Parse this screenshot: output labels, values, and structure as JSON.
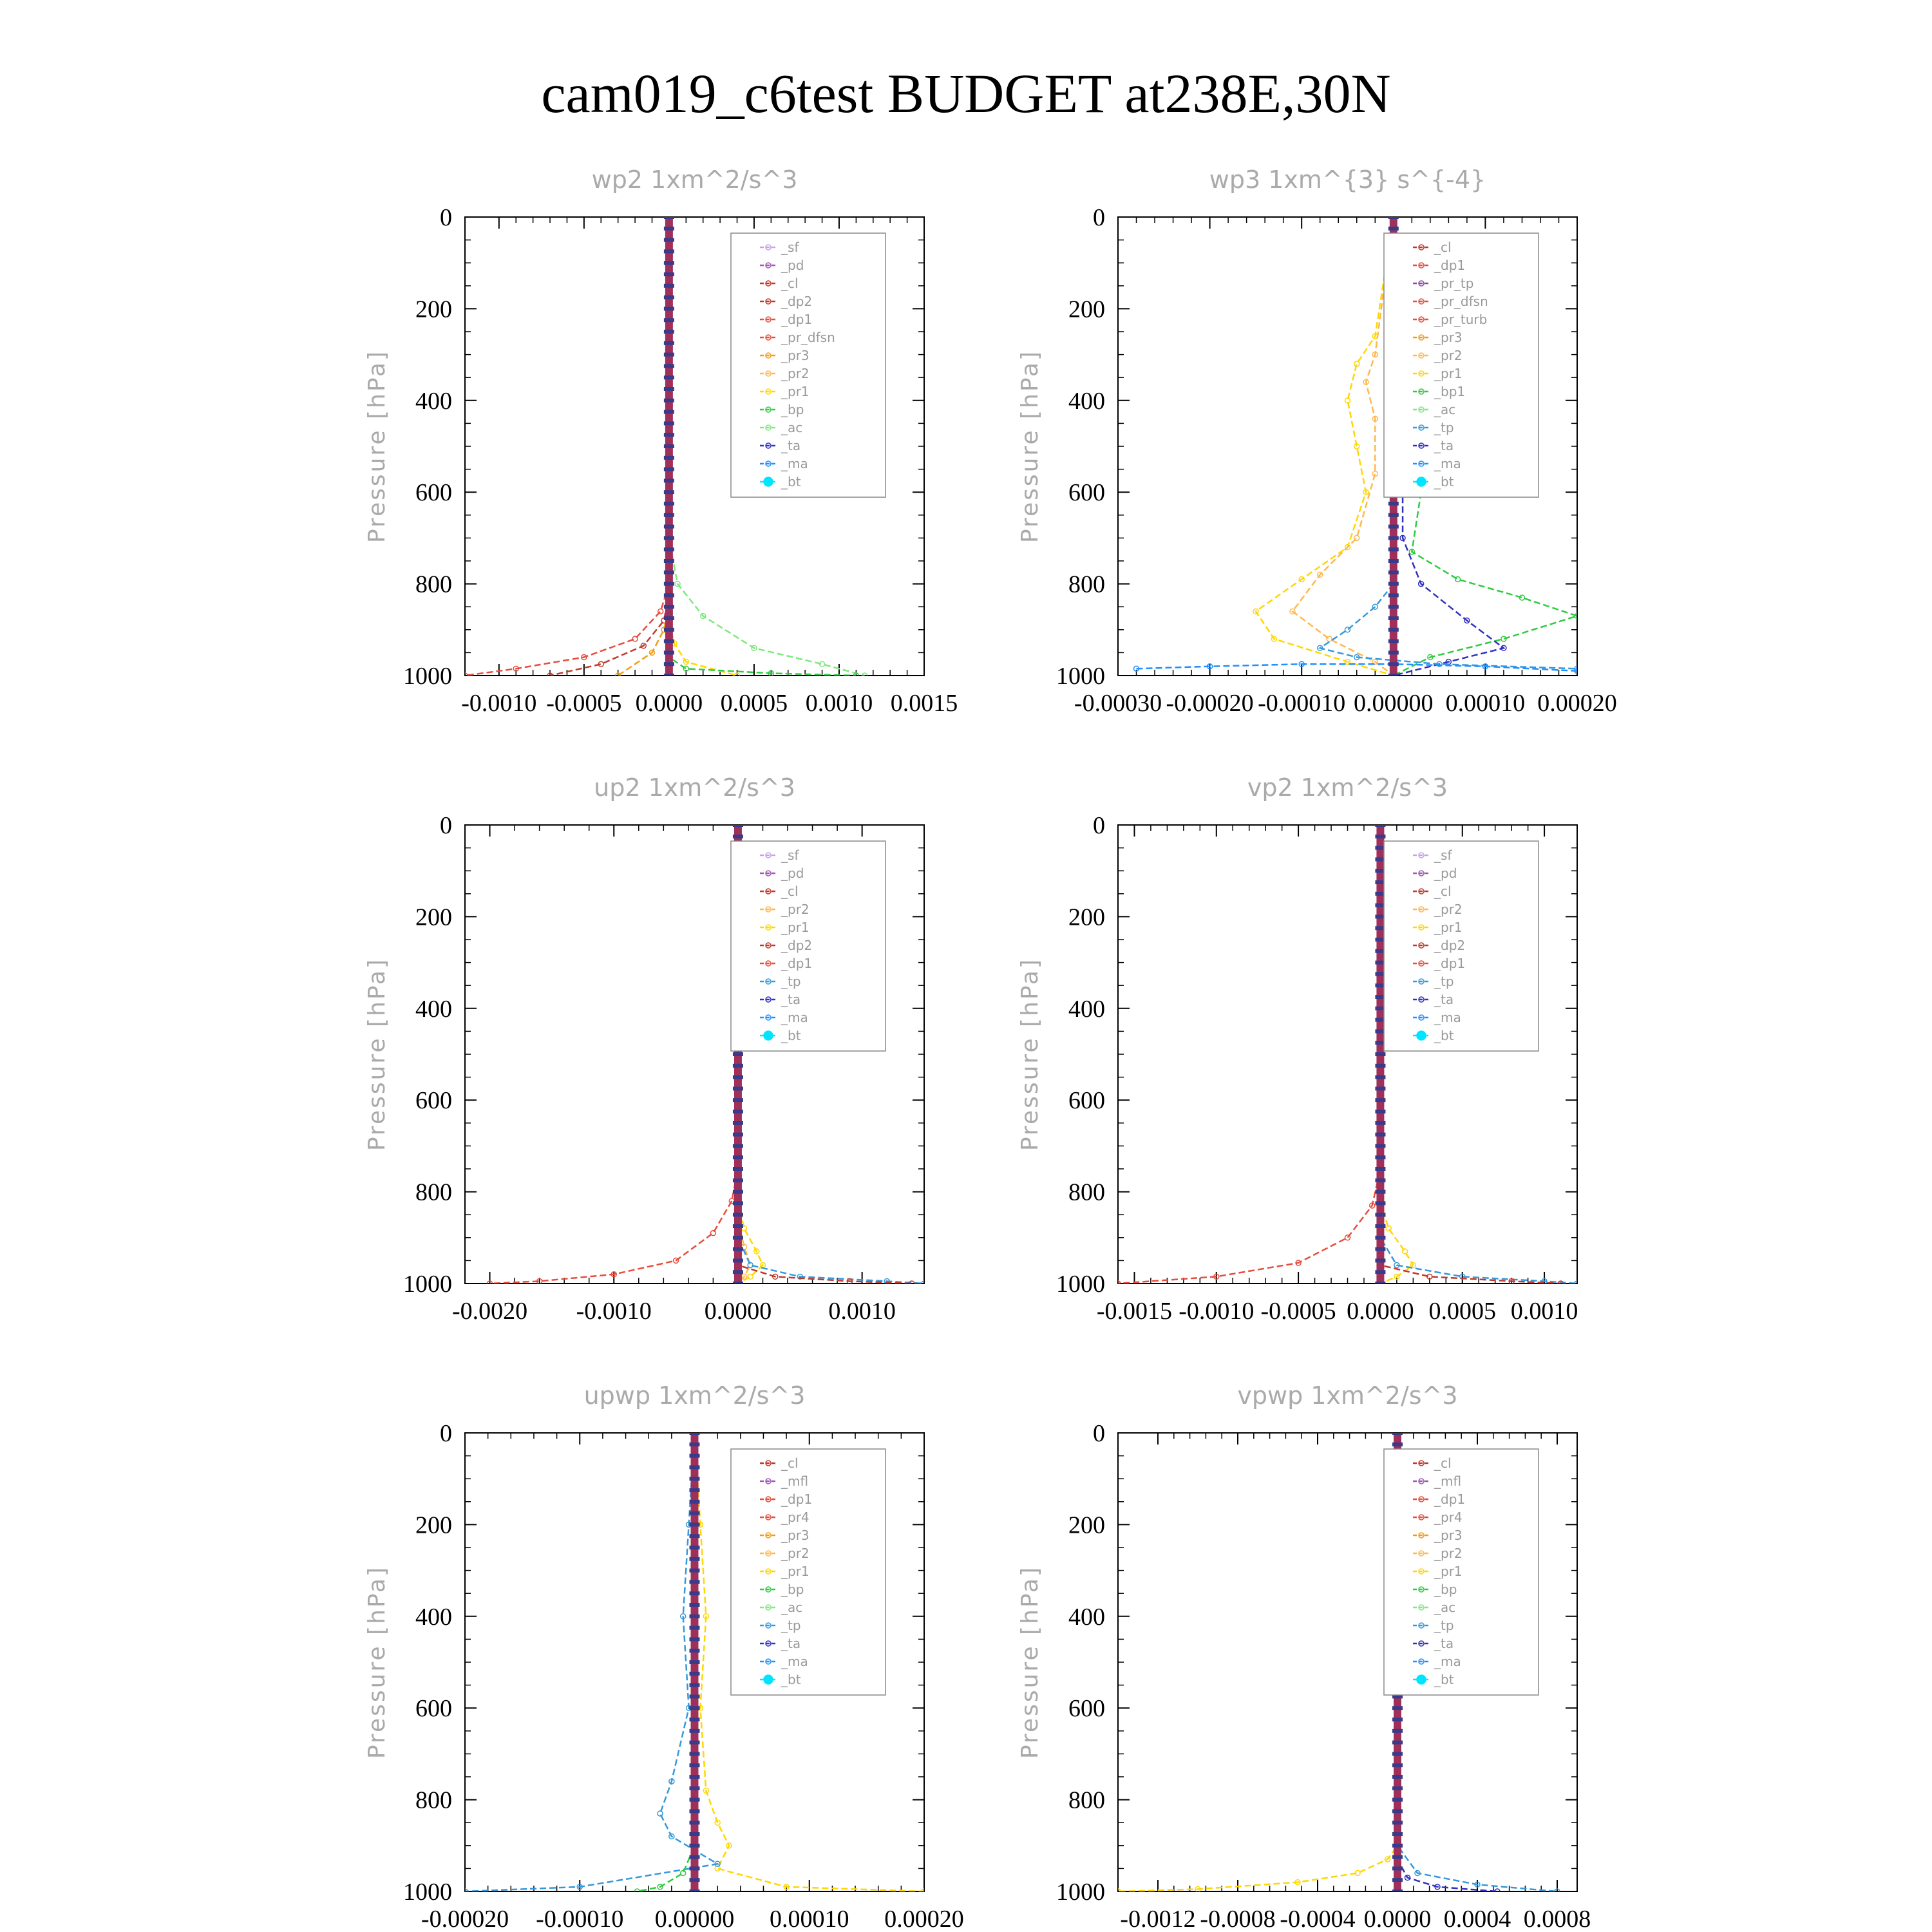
{
  "page_title": "cam019_c6test  BUDGET at238E,30N",
  "colors": {
    "_sf": "#c8a2e8",
    "_pd": "#9b59b6",
    "_cl": "#c0392b",
    "_dp2": "#c0392b",
    "_dp1": "#e74c3c",
    "_pr_dfsn": "#e74c3c",
    "_pr3": "#f39c12",
    "_pr2": "#ffb84d",
    "_pr1": "#ffd700",
    "_bp": "#2ecc40",
    "_ac": "#7fe87f",
    "_tp": "#3498db",
    "_ta": "#3030c0",
    "_ma": "#1e90ff",
    "_bt": "#00e5ff",
    "_pr_tp": "#8e44ad",
    "_pr_turb": "#e74c3c",
    "_bp1": "#2ecc40",
    "_mfl": "#9b59b6",
    "_pr4": "#e74c3c"
  },
  "chart_data": [
    {
      "type": "line",
      "title": "wp2   1xm^2/s^3",
      "ylabel": "Pressure [hPa]",
      "ylim": [
        1000,
        0
      ],
      "xlim": [
        -0.0012,
        0.0015
      ],
      "xticks": [
        "-0.0010",
        "-0.0005",
        "0.0000",
        "0.0005",
        "0.0010",
        "0.0015"
      ],
      "xtick_values": [
        -0.001,
        -0.0005,
        0,
        0.0005,
        0.001,
        0.0015
      ],
      "yticks": [
        "0",
        "200",
        "400",
        "600",
        "800",
        "1000"
      ],
      "legend": [
        "_sf",
        "_pd",
        "_cl",
        "_dp2",
        "_dp1",
        "_pr_dfsn",
        "_pr3",
        "_pr2",
        "_pr1",
        "_bp",
        "_ac",
        "_ta",
        "_ma",
        "_bt"
      ],
      "series": [
        {
          "name": "_ac",
          "x": [
            0,
            0,
            5e-05,
            0.0002,
            0.0005,
            0.0009,
            0.00115
          ],
          "y": [
            0,
            700,
            800,
            870,
            940,
            975,
            1000
          ]
        },
        {
          "name": "_dp1",
          "x": [
            0,
            0,
            -5e-05,
            -0.0002,
            -0.0005,
            -0.0009,
            -0.0012
          ],
          "y": [
            0,
            800,
            860,
            920,
            960,
            985,
            1000
          ]
        },
        {
          "name": "_dp2",
          "x": [
            0,
            0,
            -3e-05,
            -0.00015,
            -0.0004,
            -0.0007
          ],
          "y": [
            0,
            820,
            880,
            935,
            975,
            1000
          ]
        },
        {
          "name": "_pr3",
          "x": [
            0,
            0,
            -3e-05,
            -0.0001,
            -0.0003
          ],
          "y": [
            0,
            850,
            900,
            950,
            1000
          ]
        },
        {
          "name": "_pr1",
          "x": [
            0,
            0,
            3e-05,
            0.0001,
            0.0004
          ],
          "y": [
            0,
            880,
            930,
            970,
            1000
          ]
        },
        {
          "name": "_bp",
          "x": [
            0,
            0,
            0.0001,
            0.0006,
            0.0011
          ],
          "y": [
            0,
            960,
            985,
            995,
            1000
          ]
        },
        {
          "name": "_pd",
          "x": [
            0,
            0
          ],
          "y": [
            0,
            1000
          ]
        }
      ]
    },
    {
      "type": "line",
      "title": "wp3   1xm^{3} s^{-4}",
      "ylabel": "Pressure [hPa]",
      "ylim": [
        1000,
        0
      ],
      "xlim": [
        -0.0003,
        0.0002
      ],
      "xticks": [
        "-0.00030",
        "-0.00020",
        "-0.00010",
        "0.00000",
        "0.00010",
        "0.00020"
      ],
      "xtick_values": [
        -0.0003,
        -0.0002,
        -0.0001,
        0,
        0.0001,
        0.0002
      ],
      "yticks": [
        "0",
        "200",
        "400",
        "600",
        "800",
        "1000"
      ],
      "legend": [
        "_cl",
        "_dp1",
        "_pr_tp",
        "_pr_dfsn",
        "_pr_turb",
        "_pr3",
        "_pr2",
        "_pr1",
        "_bp1",
        "_ac",
        "_tp",
        "_ta",
        "_ma",
        "_bt"
      ],
      "series": [
        {
          "name": "_bp1",
          "x": [
            0,
            1e-05,
            3e-05,
            5e-05,
            5e-05,
            3e-05,
            2e-05,
            7e-05,
            0.00014,
            0.0002,
            0.00012,
            4e-05,
            0
          ],
          "y": [
            0,
            260,
            320,
            400,
            520,
            600,
            730,
            790,
            830,
            870,
            920,
            960,
            1000
          ]
        },
        {
          "name": "_pr1",
          "x": [
            0,
            -2e-05,
            -4e-05,
            -5e-05,
            -4e-05,
            -3e-05,
            -5e-05,
            -0.0001,
            -0.00015,
            -0.00013,
            -5e-05,
            0
          ],
          "y": [
            0,
            260,
            320,
            400,
            500,
            600,
            720,
            790,
            860,
            920,
            970,
            1000
          ]
        },
        {
          "name": "_pr2",
          "x": [
            0,
            -2e-05,
            -3e-05,
            -2e-05,
            -2e-05,
            -4e-05,
            -8e-05,
            -0.00011,
            -7e-05,
            -2e-05,
            0
          ],
          "y": [
            0,
            300,
            360,
            440,
            560,
            700,
            780,
            860,
            920,
            970,
            1000
          ]
        },
        {
          "name": "_ta",
          "x": [
            0,
            0,
            1e-05,
            1e-05,
            3e-05,
            8e-05,
            0.00012,
            6e-05,
            0
          ],
          "y": [
            0,
            300,
            500,
            700,
            800,
            880,
            940,
            970,
            1000
          ]
        },
        {
          "name": "_tp",
          "x": [
            0,
            0,
            -2e-05,
            -5e-05,
            -8e-05,
            -4e-05,
            5e-05,
            0.0002
          ],
          "y": [
            0,
            800,
            850,
            900,
            940,
            960,
            975,
            985
          ]
        },
        {
          "name": "_ma",
          "x": [
            -0.00028,
            -0.0002,
            -0.0001,
            0,
            0.0001,
            0.0002
          ],
          "y": [
            985,
            980,
            975,
            975,
            980,
            990
          ]
        }
      ]
    },
    {
      "type": "line",
      "title": "up2   1xm^2/s^3",
      "ylabel": "Pressure [hPa]",
      "ylim": [
        1000,
        0
      ],
      "xlim": [
        -0.0022,
        0.0015
      ],
      "xticks": [
        "-0.0020",
        "-0.0010",
        "0.0000",
        "0.0010"
      ],
      "xtick_values": [
        -0.002,
        -0.001,
        0,
        0.001
      ],
      "yticks": [
        "0",
        "200",
        "400",
        "600",
        "800",
        "1000"
      ],
      "legend": [
        "_sf",
        "_pd",
        "_cl",
        "_pr2",
        "_pr1",
        "_dp2",
        "_dp1",
        "_tp",
        "_ta",
        "_ma",
        "_bt"
      ],
      "series": [
        {
          "name": "_dp1",
          "x": [
            0,
            0,
            -5e-05,
            -0.0002,
            -0.0005,
            -0.001,
            -0.0016,
            -0.002
          ],
          "y": [
            0,
            750,
            820,
            890,
            950,
            980,
            995,
            1000
          ]
        },
        {
          "name": "_pr1",
          "x": [
            0,
            0,
            5e-05,
            0.00015,
            0.0002,
            0.0001,
            0
          ],
          "y": [
            0,
            820,
            880,
            930,
            960,
            985,
            1000
          ]
        },
        {
          "name": "_pr2",
          "x": [
            0,
            0,
            5e-05,
            0.0001,
            5e-05,
            0
          ],
          "y": [
            0,
            860,
            920,
            960,
            985,
            1000
          ]
        },
        {
          "name": "_tp",
          "x": [
            0,
            0,
            0.0001,
            0.0005,
            0.0012,
            0.0015
          ],
          "y": [
            0,
            900,
            960,
            985,
            995,
            1000
          ]
        },
        {
          "name": "_dp2",
          "x": [
            0,
            0,
            0.0003,
            0.0009,
            0.0014
          ],
          "y": [
            0,
            960,
            985,
            995,
            1000
          ]
        }
      ]
    },
    {
      "type": "line",
      "title": "vp2   1xm^2/s^3",
      "ylabel": "Pressure [hPa]",
      "ylim": [
        1000,
        0
      ],
      "xlim": [
        -0.0016,
        0.0012
      ],
      "xticks": [
        "-0.0015",
        "-0.0010",
        "-0.0005",
        "0.0000",
        "0.0005",
        "0.0010"
      ],
      "xtick_values": [
        -0.0015,
        -0.001,
        -0.0005,
        0,
        0.0005,
        0.001
      ],
      "yticks": [
        "0",
        "200",
        "400",
        "600",
        "800",
        "1000"
      ],
      "legend": [
        "_sf",
        "_pd",
        "_cl",
        "_pr2",
        "_pr1",
        "_dp2",
        "_dp1",
        "_tp",
        "_ta",
        "_ma",
        "_bt"
      ],
      "series": [
        {
          "name": "_dp1",
          "x": [
            0,
            0,
            -5e-05,
            -0.0002,
            -0.0005,
            -0.001,
            -0.0016
          ],
          "y": [
            0,
            750,
            830,
            900,
            955,
            985,
            1000
          ]
        },
        {
          "name": "_pr1",
          "x": [
            0,
            0,
            5e-05,
            0.00015,
            0.0002,
            0.0001,
            0
          ],
          "y": [
            0,
            820,
            880,
            930,
            960,
            985,
            1000
          ]
        },
        {
          "name": "_tp",
          "x": [
            0,
            0,
            0.0001,
            0.0005,
            0.001,
            0.0012
          ],
          "y": [
            0,
            900,
            960,
            985,
            995,
            1000
          ]
        },
        {
          "name": "_dp2",
          "x": [
            0,
            0,
            0.0003,
            0.0008,
            0.0011
          ],
          "y": [
            0,
            960,
            985,
            995,
            1000
          ]
        }
      ]
    },
    {
      "type": "line",
      "title": "upwp   1xm^2/s^3",
      "ylabel": "Pressure [hPa]",
      "ylim": [
        1000,
        0
      ],
      "xlim": [
        -0.0002,
        0.0002
      ],
      "xticks": [
        "-0.00020",
        "-0.00010",
        "0.00000",
        "0.00010",
        "0.00020"
      ],
      "xtick_values": [
        -0.0002,
        -0.0001,
        0,
        0.0001,
        0.0002
      ],
      "yticks": [
        "0",
        "200",
        "400",
        "600",
        "800",
        "1000"
      ],
      "legend": [
        "_cl",
        "_mfl",
        "_dp1",
        "_pr4",
        "_pr3",
        "_pr2",
        "_pr1",
        "_bp",
        "_ac",
        "_tp",
        "_ta",
        "_ma",
        "_bt"
      ],
      "series": [
        {
          "name": "_pr1",
          "x": [
            0,
            5e-06,
            1e-05,
            5e-06,
            1e-05,
            2e-05,
            3e-05,
            2e-05,
            8e-05,
            0.0002
          ],
          "y": [
            0,
            200,
            400,
            600,
            780,
            850,
            900,
            950,
            990,
            1000
          ]
        },
        {
          "name": "_tp",
          "x": [
            0,
            -5e-06,
            -1e-05,
            -5e-06,
            -2e-05,
            -3e-05,
            -2e-05,
            2e-05,
            -0.0001,
            -0.0002
          ],
          "y": [
            0,
            200,
            400,
            600,
            760,
            830,
            880,
            940,
            990,
            1000
          ]
        },
        {
          "name": "_bp",
          "x": [
            0,
            0,
            -1e-05,
            -3e-05,
            -5e-05
          ],
          "y": [
            0,
            900,
            960,
            990,
            1000
          ]
        }
      ]
    },
    {
      "type": "line",
      "title": "vpwp   1xm^2/s^3",
      "ylabel": "Pressure [hPa]",
      "ylim": [
        1000,
        0
      ],
      "xlim": [
        -0.0014,
        0.0009
      ],
      "xticks": [
        "-0.0012",
        "-0.0008",
        "-0.0004",
        "0.0000",
        "0.0004",
        "0.0008"
      ],
      "xtick_values": [
        -0.0012,
        -0.0008,
        -0.0004,
        0,
        0.0004,
        0.0008
      ],
      "yticks": [
        "0",
        "200",
        "400",
        "600",
        "800",
        "1000"
      ],
      "legend": [
        "_cl",
        "_mfl",
        "_dp1",
        "_pr4",
        "_pr3",
        "_pr2",
        "_pr1",
        "_bp",
        "_ac",
        "_tp",
        "_ta",
        "_ma",
        "_bt"
      ],
      "series": [
        {
          "name": "_pr1",
          "x": [
            0,
            0,
            -5e-05,
            -0.0002,
            -0.0005,
            -0.001,
            -0.0014
          ],
          "y": [
            0,
            900,
            930,
            960,
            980,
            995,
            1000
          ]
        },
        {
          "name": "_tp",
          "x": [
            0,
            0,
            0.0001,
            0.0004,
            0.0008
          ],
          "y": [
            0,
            900,
            960,
            985,
            1000
          ]
        },
        {
          "name": "_ta",
          "x": [
            0,
            0,
            5e-05,
            0.0002,
            0.0005
          ],
          "y": [
            0,
            930,
            970,
            990,
            1000
          ]
        }
      ]
    }
  ]
}
